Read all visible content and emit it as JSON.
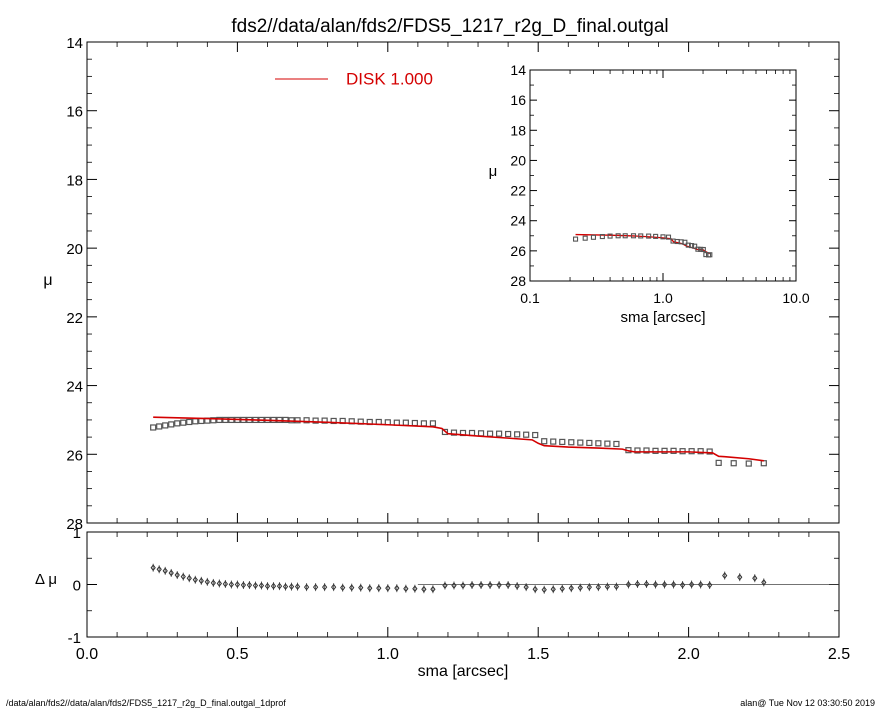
{
  "header": {
    "title": "fds2//data/alan/fds2/FDS5_1217_r2g_D_final.outgal"
  },
  "footer": {
    "left": "/data/alan/fds2//data/alan/fds2/FDS5_1217_r2g_D_final.outgal_1dprof",
    "right": "alan@  Tue Nov 12 03:30:50 2019"
  },
  "colors": {
    "model": "#d40000",
    "data": "#555555",
    "axes": "#000000"
  },
  "chart_data": [
    {
      "type": "scatter",
      "role": "main",
      "xlim": [
        0.0,
        2.5
      ],
      "ylim": [
        28,
        14
      ],
      "ylabel": "μ",
      "yticks": [
        14,
        16,
        18,
        20,
        22,
        24,
        26,
        28
      ],
      "legend": {
        "label": "DISK  1.000",
        "placement": "top-left"
      },
      "series": [
        {
          "name": "data",
          "style": "open-squares",
          "x": [
            0.22,
            0.24,
            0.26,
            0.28,
            0.3,
            0.32,
            0.34,
            0.36,
            0.38,
            0.4,
            0.42,
            0.44,
            0.46,
            0.48,
            0.5,
            0.52,
            0.54,
            0.56,
            0.58,
            0.6,
            0.62,
            0.64,
            0.66,
            0.68,
            0.7,
            0.73,
            0.76,
            0.79,
            0.82,
            0.85,
            0.88,
            0.91,
            0.94,
            0.97,
            1.0,
            1.03,
            1.06,
            1.09,
            1.12,
            1.15,
            1.19,
            1.22,
            1.25,
            1.28,
            1.31,
            1.34,
            1.37,
            1.4,
            1.43,
            1.46,
            1.49,
            1.52,
            1.55,
            1.58,
            1.61,
            1.64,
            1.67,
            1.7,
            1.73,
            1.76,
            1.8,
            1.83,
            1.86,
            1.89,
            1.92,
            1.95,
            1.98,
            2.01,
            2.04,
            2.07,
            2.1,
            2.15,
            2.2,
            2.25
          ],
          "y": [
            25.22,
            25.19,
            25.16,
            25.13,
            25.1,
            25.08,
            25.06,
            25.04,
            25.03,
            25.02,
            25.01,
            25.0,
            25.0,
            25.0,
            25.0,
            25.0,
            25.0,
            25.0,
            25.0,
            25.0,
            25.0,
            25.0,
            25.0,
            25.01,
            25.01,
            25.01,
            25.02,
            25.02,
            25.03,
            25.03,
            25.04,
            25.05,
            25.06,
            25.06,
            25.07,
            25.08,
            25.08,
            25.09,
            25.1,
            25.1,
            25.35,
            25.37,
            25.38,
            25.38,
            25.39,
            25.4,
            25.4,
            25.41,
            25.42,
            25.43,
            25.44,
            25.62,
            25.63,
            25.64,
            25.65,
            25.66,
            25.67,
            25.68,
            25.69,
            25.7,
            25.88,
            25.89,
            25.89,
            25.9,
            25.9,
            25.9,
            25.91,
            25.91,
            25.91,
            25.92,
            26.25,
            26.26,
            26.27,
            26.26
          ]
        },
        {
          "name": "DISK  1.000",
          "style": "line",
          "x": [
            0.22,
            0.4,
            0.6,
            0.8,
            1.0,
            1.15,
            1.18,
            1.2,
            1.3,
            1.4,
            1.48,
            1.5,
            1.52,
            1.6,
            1.7,
            1.78,
            1.8,
            1.82,
            1.9,
            2.0,
            2.08,
            2.1,
            2.12,
            2.2,
            2.25
          ],
          "y": [
            24.92,
            24.96,
            25.01,
            25.07,
            25.14,
            25.2,
            25.25,
            25.4,
            25.47,
            25.53,
            25.58,
            25.68,
            25.75,
            25.79,
            25.82,
            25.85,
            25.9,
            25.93,
            25.93,
            25.93,
            25.96,
            26.06,
            26.07,
            26.13,
            26.19
          ]
        }
      ]
    },
    {
      "type": "scatter",
      "role": "residual",
      "xlim": [
        0.0,
        2.5
      ],
      "ylim": [
        -1,
        1
      ],
      "xlabel": "sma [arcsec]",
      "ylabel": "Δ μ",
      "xticks": [
        "0.0",
        "0.5",
        "1.0",
        "1.5",
        "2.0",
        "2.5"
      ],
      "yticks": [
        "1",
        "0",
        "-1"
      ],
      "series": [
        {
          "name": "residual",
          "style": "diamonds-with-errorbars",
          "x": [
            0.22,
            0.24,
            0.26,
            0.28,
            0.3,
            0.32,
            0.34,
            0.36,
            0.38,
            0.4,
            0.42,
            0.44,
            0.46,
            0.48,
            0.5,
            0.52,
            0.54,
            0.56,
            0.58,
            0.6,
            0.62,
            0.64,
            0.66,
            0.68,
            0.7,
            0.73,
            0.76,
            0.79,
            0.82,
            0.85,
            0.88,
            0.91,
            0.94,
            0.97,
            1.0,
            1.03,
            1.06,
            1.09,
            1.12,
            1.15,
            1.19,
            1.22,
            1.25,
            1.28,
            1.31,
            1.34,
            1.37,
            1.4,
            1.43,
            1.46,
            1.49,
            1.52,
            1.55,
            1.58,
            1.61,
            1.64,
            1.67,
            1.7,
            1.73,
            1.76,
            1.8,
            1.83,
            1.86,
            1.89,
            1.92,
            1.95,
            1.98,
            2.01,
            2.04,
            2.07,
            2.12,
            2.17,
            2.22,
            2.25
          ],
          "y": [
            0.32,
            0.29,
            0.26,
            0.22,
            0.18,
            0.15,
            0.12,
            0.09,
            0.07,
            0.05,
            0.03,
            0.02,
            0.01,
            0.0,
            0.0,
            -0.01,
            -0.01,
            -0.02,
            -0.02,
            -0.03,
            -0.03,
            -0.03,
            -0.04,
            -0.04,
            -0.04,
            -0.05,
            -0.05,
            -0.05,
            -0.05,
            -0.06,
            -0.06,
            -0.06,
            -0.07,
            -0.07,
            -0.07,
            -0.07,
            -0.08,
            -0.08,
            -0.09,
            -0.09,
            -0.02,
            -0.02,
            -0.02,
            -0.01,
            -0.01,
            -0.01,
            -0.01,
            -0.01,
            -0.03,
            -0.05,
            -0.09,
            -0.1,
            -0.09,
            -0.08,
            -0.07,
            -0.06,
            -0.05,
            -0.05,
            -0.04,
            -0.04,
            0.0,
            0.01,
            0.01,
            0.0,
            0.0,
            0.0,
            -0.01,
            0.0,
            0.0,
            -0.01,
            0.17,
            0.14,
            0.12,
            0.04
          ]
        }
      ]
    },
    {
      "type": "scatter",
      "role": "inset",
      "xscale": "log",
      "xlim": [
        0.1,
        10.0
      ],
      "ylim": [
        28,
        14
      ],
      "xlabel": "sma [arcsec]",
      "ylabel": "μ",
      "xticks": [
        "0.1",
        "1.0",
        "10.0"
      ],
      "yticks": [
        14,
        16,
        18,
        20,
        22,
        24,
        26,
        28
      ],
      "series": [
        {
          "name": "data",
          "style": "open-squares",
          "x": [
            0.22,
            0.26,
            0.3,
            0.35,
            0.4,
            0.46,
            0.52,
            0.6,
            0.68,
            0.78,
            0.88,
            1.0,
            1.1,
            1.19,
            1.28,
            1.37,
            1.46,
            1.55,
            1.64,
            1.73,
            1.83,
            1.92,
            2.01,
            2.1,
            2.2,
            2.25
          ],
          "y": [
            25.22,
            25.16,
            25.1,
            25.05,
            25.02,
            25.0,
            25.0,
            25.0,
            25.01,
            25.02,
            25.04,
            25.07,
            25.09,
            25.35,
            25.38,
            25.4,
            25.43,
            25.62,
            25.65,
            25.69,
            25.89,
            25.9,
            25.91,
            26.25,
            26.27,
            26.26
          ]
        },
        {
          "name": "model",
          "style": "line",
          "x": [
            0.22,
            0.4,
            0.6,
            0.8,
            1.0,
            1.15,
            1.2,
            1.4,
            1.5,
            1.7,
            1.8,
            2.0,
            2.1,
            2.25
          ],
          "y": [
            24.92,
            24.96,
            25.01,
            25.07,
            25.14,
            25.2,
            25.4,
            25.53,
            25.68,
            25.82,
            25.9,
            25.93,
            26.06,
            26.19
          ]
        }
      ]
    }
  ]
}
